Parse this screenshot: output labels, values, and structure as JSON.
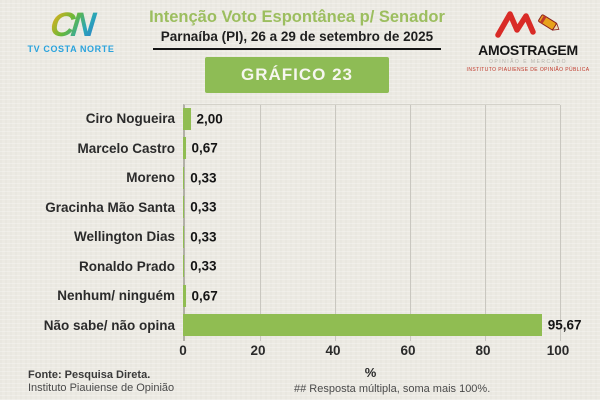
{
  "header": {
    "brand_left": {
      "monogram": "CN",
      "name": "TV COSTA NORTE"
    },
    "title": "Intenção Voto Espontânea p/ Senador",
    "subtitle": "Parnaíba (PI), 26 a 29 de setembro de 2025",
    "badge": "GRÁFICO 23",
    "brand_right": {
      "name": "AMOSTRAGEM",
      "tagline": "OPINIÃO E MERCADO",
      "subtext": "INSTITUTO PIAUIENSE DE OPINIÃO PÚBLICA"
    }
  },
  "chart_data": {
    "type": "bar",
    "orientation": "horizontal",
    "title": "Intenção Voto Espontânea p/ Senador",
    "subtitle": "Parnaíba (PI), 26 a 29 de setembro de 2025",
    "categories": [
      "Ciro Nogueira",
      "Marcelo Castro",
      "Moreno",
      "Gracinha Mão Santa",
      "Wellington Dias",
      "Ronaldo Prado",
      "Nenhum/ ninguém",
      "Não sabe/ não opina"
    ],
    "values": [
      2.0,
      0.67,
      0.33,
      0.33,
      0.33,
      0.33,
      0.67,
      95.67
    ],
    "value_labels": [
      "2,00",
      "0,67",
      "0,33",
      "0,33",
      "0,33",
      "0,33",
      "0,67",
      "95,67"
    ],
    "xlabel": "%",
    "xlim": [
      0,
      100
    ],
    "xticks": [
      0,
      20,
      40,
      60,
      80,
      100
    ],
    "grid": true,
    "legend": "none",
    "bar_color": "#90BD52"
  },
  "footer": {
    "source_line1": "Fonte: Pesquisa Direta.",
    "source_line2": "Instituto Piauiense de Opinião",
    "note": "## Resposta múltipla, soma mais 100%."
  },
  "colors": {
    "accent_green": "#90BD52",
    "title_green": "#9CBE5F",
    "brand_blue": "#2AA3DD",
    "brand_red": "#D92B27",
    "background": "#ECEAE3"
  }
}
